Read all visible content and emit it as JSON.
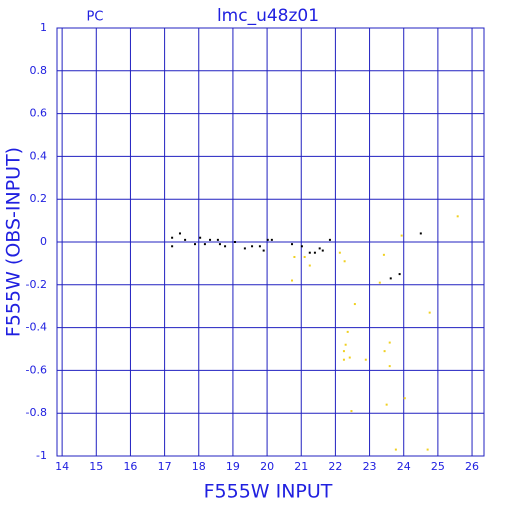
{
  "chart_data": {
    "type": "scatter",
    "title": "lmc_u48z01",
    "subtitle": "PC",
    "x_label": "F555W INPUT",
    "y_label": "F555W (OBS-INPUT)",
    "xlim": [
      13.85,
      26.35
    ],
    "ylim": [
      -1,
      1
    ],
    "xticks": [
      14,
      15,
      16,
      17,
      18,
      19,
      20,
      21,
      22,
      23,
      24,
      25,
      26
    ],
    "yticks": [
      -1,
      -0.8,
      -0.6,
      -0.4,
      -0.2,
      0,
      0.2,
      0.4,
      0.6,
      0.8,
      1
    ],
    "grid": true,
    "grid_color": "#2020c0",
    "series": [
      {
        "color": "#000000",
        "x": [
          17.22,
          17.22,
          17.45,
          17.6,
          17.89,
          18.04,
          18.18,
          18.33,
          18.56,
          18.62,
          18.77,
          19.06,
          19.35,
          19.56,
          19.79,
          19.9,
          20.02,
          20.14,
          20.73,
          21.02,
          21.25,
          21.4,
          21.54,
          21.63,
          21.84,
          23.62,
          23.88,
          24.5
        ],
        "values": [
          -0.02,
          0.02,
          0.04,
          0.01,
          -0.01,
          0.02,
          -0.01,
          0.01,
          0.01,
          -0.01,
          -0.02,
          0,
          -0.03,
          -0.02,
          -0.02,
          -0.04,
          0.01,
          0.01,
          -0.01,
          -0.02,
          -0.05,
          -0.05,
          -0.03,
          -0.04,
          0.01,
          -0.17,
          -0.15,
          0.04
        ]
      },
      {
        "color": "#f0d020",
        "x": [
          20.8,
          20.73,
          21.1,
          21.25,
          22.13,
          22.27,
          22.57,
          22.36,
          22.3,
          22.25,
          22.25,
          22.42,
          22.47,
          22.89,
          23.3,
          23.42,
          23.44,
          23.59,
          23.59,
          23.5,
          23.77,
          23.94,
          24.03,
          24.76,
          24.7,
          25.58
        ],
        "values": [
          -0.07,
          -0.18,
          -0.07,
          -0.11,
          -0.05,
          -0.09,
          -0.29,
          -0.42,
          -0.48,
          -0.51,
          -0.55,
          -0.54,
          -0.79,
          -0.55,
          -0.19,
          -0.06,
          -0.51,
          -0.47,
          -0.58,
          -0.76,
          -0.97,
          0.03,
          -0.73,
          -0.33,
          -0.97,
          0.12
        ]
      }
    ]
  }
}
